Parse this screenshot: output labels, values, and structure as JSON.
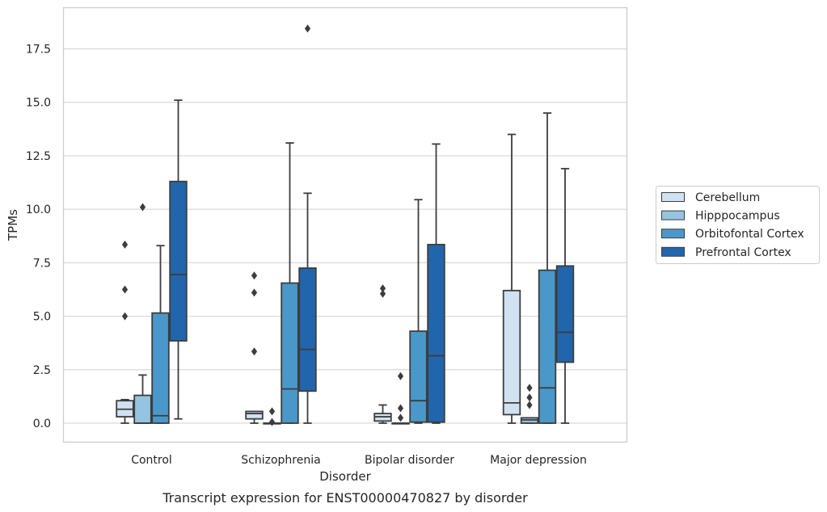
{
  "chart_data": {
    "type": "box",
    "title": "",
    "caption": "Transcript expression for ENST00000470827 by disorder",
    "xlabel": "Disorder",
    "ylabel": "TPMs",
    "ylim": [
      -0.9,
      19.4
    ],
    "yticks": [
      0.0,
      2.5,
      5.0,
      7.5,
      10.0,
      12.5,
      15.0,
      17.5
    ],
    "ytick_labels": [
      "0.0",
      "2.5",
      "5.0",
      "7.5",
      "10.0",
      "12.5",
      "15.0",
      "17.5"
    ],
    "grid": true,
    "legend_position": "right",
    "categories": [
      "Control",
      "Schizophrenia",
      "Bipolar disorder",
      "Major depression"
    ],
    "series": [
      {
        "name": "Cerebellum",
        "color": "#d0e1f2",
        "boxes": [
          {
            "whisker_low": 0.0,
            "q1": 0.3,
            "median": 0.65,
            "q3": 1.05,
            "whisker_high": 1.1,
            "outliers": [
              5.0,
              6.25,
              8.35
            ]
          },
          {
            "whisker_low": 0.0,
            "q1": 0.2,
            "median": 0.45,
            "q3": 0.55,
            "whisker_high": 0.55,
            "outliers": [
              3.35,
              6.1,
              6.9
            ]
          },
          {
            "whisker_low": 0.0,
            "q1": 0.1,
            "median": 0.3,
            "q3": 0.45,
            "whisker_high": 0.85,
            "outliers": [
              6.05,
              6.3
            ]
          },
          {
            "whisker_low": 0.0,
            "q1": 0.4,
            "median": 0.95,
            "q3": 6.2,
            "whisker_high": 13.5,
            "outliers": []
          }
        ]
      },
      {
        "name": "Hipppocampus",
        "color": "#94c4df",
        "boxes": [
          {
            "whisker_low": 0.0,
            "q1": 0.0,
            "median": 0.0,
            "q3": 1.3,
            "whisker_high": 2.25,
            "outliers": [
              10.1
            ]
          },
          {
            "whisker_low": 0.0,
            "q1": 0.0,
            "median": 0.0,
            "q3": 0.0,
            "whisker_high": 0.0,
            "outliers": [
              0.05,
              0.55
            ]
          },
          {
            "whisker_low": 0.0,
            "q1": 0.0,
            "median": 0.0,
            "q3": 0.0,
            "whisker_high": 0.0,
            "outliers": [
              0.25,
              0.7,
              2.2
            ]
          },
          {
            "whisker_low": 0.0,
            "q1": 0.0,
            "median": 0.15,
            "q3": 0.25,
            "whisker_high": 0.25,
            "outliers": [
              0.85,
              1.2,
              1.65
            ]
          }
        ]
      },
      {
        "name": "Orbitofontal Cortex",
        "color": "#4a98c9",
        "boxes": [
          {
            "whisker_low": 0.0,
            "q1": 0.0,
            "median": 0.35,
            "q3": 5.15,
            "whisker_high": 8.3,
            "outliers": []
          },
          {
            "whisker_low": 0.0,
            "q1": 0.0,
            "median": 1.6,
            "q3": 6.55,
            "whisker_high": 13.1,
            "outliers": []
          },
          {
            "whisker_low": 0.0,
            "q1": 0.05,
            "median": 1.05,
            "q3": 4.3,
            "whisker_high": 10.45,
            "outliers": []
          },
          {
            "whisker_low": 0.0,
            "q1": 0.0,
            "median": 1.65,
            "q3": 7.15,
            "whisker_high": 14.5,
            "outliers": []
          }
        ]
      },
      {
        "name": "Prefrontal Cortex",
        "color": "#2166ac",
        "boxes": [
          {
            "whisker_low": 0.2,
            "q1": 3.85,
            "median": 6.95,
            "q3": 11.3,
            "whisker_high": 15.1,
            "outliers": []
          },
          {
            "whisker_low": 0.0,
            "q1": 1.5,
            "median": 3.45,
            "q3": 7.25,
            "whisker_high": 10.75,
            "outliers": [
              18.45
            ]
          },
          {
            "whisker_low": 0.0,
            "q1": 0.05,
            "median": 3.15,
            "q3": 8.35,
            "whisker_high": 13.05,
            "outliers": []
          },
          {
            "whisker_low": 0.0,
            "q1": 2.85,
            "median": 4.25,
            "q3": 7.35,
            "whisker_high": 11.9,
            "outliers": []
          }
        ]
      }
    ],
    "colors": {
      "grid": "#d9d9d9",
      "spine": "#cccccc",
      "line": "#3d3d3d",
      "text": "#262626"
    }
  }
}
